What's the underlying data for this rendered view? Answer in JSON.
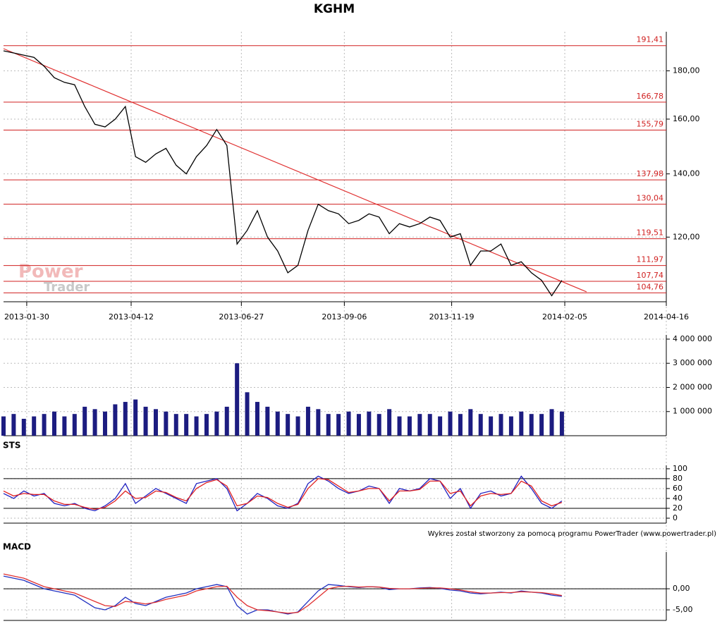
{
  "chart_data": [
    {
      "type": "line",
      "title": "KGHM",
      "log": true,
      "grid": true,
      "x": [
        "2013-01-14",
        "2013-01-21",
        "2013-01-28",
        "2013-02-04",
        "2013-02-11",
        "2013-02-18",
        "2013-02-25",
        "2013-03-04",
        "2013-03-11",
        "2013-03-18",
        "2013-03-25",
        "2013-04-01",
        "2013-04-08",
        "2013-04-15",
        "2013-04-22",
        "2013-04-29",
        "2013-05-06",
        "2013-05-13",
        "2013-05-20",
        "2013-05-27",
        "2013-06-03",
        "2013-06-10",
        "2013-06-17",
        "2013-06-24",
        "2013-07-01",
        "2013-07-08",
        "2013-07-15",
        "2013-07-22",
        "2013-07-29",
        "2013-08-05",
        "2013-08-12",
        "2013-08-19",
        "2013-08-26",
        "2013-09-02",
        "2013-09-09",
        "2013-09-16",
        "2013-09-23",
        "2013-09-30",
        "2013-10-07",
        "2013-10-14",
        "2013-10-21",
        "2013-10-28",
        "2013-11-04",
        "2013-11-11",
        "2013-11-18",
        "2013-11-25",
        "2013-12-02",
        "2013-12-09",
        "2013-12-16",
        "2013-12-23",
        "2013-12-30",
        "2014-01-06",
        "2014-01-13",
        "2014-01-20",
        "2014-01-27",
        "2014-02-03"
      ],
      "series": [
        {
          "color": "#000000",
          "values": [
            189,
            188,
            187,
            186,
            182,
            177,
            175,
            174,
            165,
            158,
            157,
            160,
            165,
            146,
            144,
            147,
            149,
            143,
            140,
            146,
            150,
            156,
            150,
            118,
            122,
            128,
            120,
            116,
            110,
            112,
            122,
            130,
            128,
            127,
            124,
            125,
            127,
            126,
            121,
            124,
            123,
            124,
            126,
            125,
            120,
            121,
            112,
            116,
            116,
            118,
            112,
            113,
            110,
            108,
            104,
            108
          ]
        }
      ],
      "xlim": [
        "2013-01-14",
        "2014-04-16"
      ],
      "xticks": [
        "2013-01-30",
        "2013-04-12",
        "2013-06-27",
        "2013-09-06",
        "2013-11-19",
        "2014-02-05",
        "2014-04-16"
      ],
      "ylim": [
        102.5,
        198
      ],
      "yticks": [
        {
          "value": 120,
          "label": "120,00"
        },
        {
          "value": 140,
          "label": "140,00"
        },
        {
          "value": 160,
          "label": "160,00"
        },
        {
          "value": 180,
          "label": "180,00"
        }
      ],
      "level_color": "#d02020",
      "levels": [
        {
          "value": 191.41,
          "label": "191,41"
        },
        {
          "value": 166.78,
          "label": "166,78"
        },
        {
          "value": 155.79,
          "label": "155,79"
        },
        {
          "value": 137.98,
          "label": "137,98"
        },
        {
          "value": 130.04,
          "label": "130,04"
        },
        {
          "value": 119.51,
          "label": "119,51"
        },
        {
          "value": 111.97,
          "label": "111,97"
        },
        {
          "value": 107.74,
          "label": "107,74"
        },
        {
          "value": 104.76,
          "label": "104,76"
        }
      ],
      "trendline": {
        "color": "#e03030",
        "x": [
          "2013-01-14",
          "2014-02-20"
        ],
        "values": [
          190,
          105
        ]
      }
    },
    {
      "type": "bar",
      "grid": true,
      "x": [
        "2013-01-14",
        "2013-01-21",
        "2013-01-28",
        "2013-02-04",
        "2013-02-11",
        "2013-02-18",
        "2013-02-25",
        "2013-03-04",
        "2013-03-11",
        "2013-03-18",
        "2013-03-25",
        "2013-04-01",
        "2013-04-08",
        "2013-04-15",
        "2013-04-22",
        "2013-04-29",
        "2013-05-06",
        "2013-05-13",
        "2013-05-20",
        "2013-05-27",
        "2013-06-03",
        "2013-06-10",
        "2013-06-17",
        "2013-06-24",
        "2013-07-01",
        "2013-07-08",
        "2013-07-15",
        "2013-07-22",
        "2013-07-29",
        "2013-08-05",
        "2013-08-12",
        "2013-08-19",
        "2013-08-26",
        "2013-09-02",
        "2013-09-09",
        "2013-09-16",
        "2013-09-23",
        "2013-09-30",
        "2013-10-07",
        "2013-10-14",
        "2013-10-21",
        "2013-10-28",
        "2013-11-04",
        "2013-11-11",
        "2013-11-18",
        "2013-11-25",
        "2013-12-02",
        "2013-12-09",
        "2013-12-16",
        "2013-12-23",
        "2013-12-30",
        "2014-01-06",
        "2014-01-13",
        "2014-01-20",
        "2014-01-27",
        "2014-02-03"
      ],
      "series": [
        {
          "color": "#1c1c80",
          "values": [
            800000,
            900000,
            700000,
            800000,
            900000,
            1000000,
            800000,
            900000,
            1200000,
            1100000,
            1000000,
            1300000,
            1400000,
            1500000,
            1200000,
            1100000,
            1000000,
            900000,
            900000,
            800000,
            900000,
            1000000,
            1200000,
            3000000,
            1800000,
            1400000,
            1200000,
            1000000,
            900000,
            800000,
            1200000,
            1100000,
            900000,
            900000,
            1000000,
            900000,
            1000000,
            900000,
            1100000,
            800000,
            800000,
            900000,
            900000,
            800000,
            1000000,
            900000,
            1100000,
            900000,
            800000,
            900000,
            800000,
            1000000,
            900000,
            900000,
            1100000,
            1000000
          ]
        }
      ],
      "xlim": [
        "2013-01-14",
        "2014-04-16"
      ],
      "ylim": [
        0,
        4175000
      ],
      "yticks": [
        {
          "value": 1000000,
          "label": "1 000 000"
        },
        {
          "value": 2000000,
          "label": "2 000 000"
        },
        {
          "value": 3000000,
          "label": "3 000 000"
        },
        {
          "value": 4000000,
          "label": "4 000 000"
        }
      ]
    },
    {
      "type": "line",
      "title": "STS",
      "grid": true,
      "x": [
        "2013-01-14",
        "2013-01-21",
        "2013-01-28",
        "2013-02-04",
        "2013-02-11",
        "2013-02-18",
        "2013-02-25",
        "2013-03-04",
        "2013-03-11",
        "2013-03-18",
        "2013-03-25",
        "2013-04-01",
        "2013-04-08",
        "2013-04-15",
        "2013-04-22",
        "2013-04-29",
        "2013-05-06",
        "2013-05-13",
        "2013-05-20",
        "2013-05-27",
        "2013-06-03",
        "2013-06-10",
        "2013-06-17",
        "2013-06-24",
        "2013-07-01",
        "2013-07-08",
        "2013-07-15",
        "2013-07-22",
        "2013-07-29",
        "2013-08-05",
        "2013-08-12",
        "2013-08-19",
        "2013-08-26",
        "2013-09-02",
        "2013-09-09",
        "2013-09-16",
        "2013-09-23",
        "2013-09-30",
        "2013-10-07",
        "2013-10-14",
        "2013-10-21",
        "2013-10-28",
        "2013-11-04",
        "2013-11-11",
        "2013-11-18",
        "2013-11-25",
        "2013-12-02",
        "2013-12-09",
        "2013-12-16",
        "2013-12-23",
        "2013-12-30",
        "2014-01-06",
        "2014-01-13",
        "2014-01-20",
        "2014-01-27",
        "2014-02-03"
      ],
      "series": [
        {
          "color": "#2020c0",
          "values": [
            50,
            40,
            55,
            45,
            50,
            30,
            25,
            30,
            20,
            15,
            25,
            40,
            70,
            30,
            45,
            60,
            50,
            40,
            30,
            70,
            75,
            80,
            60,
            15,
            30,
            50,
            40,
            25,
            20,
            30,
            70,
            85,
            75,
            60,
            50,
            55,
            65,
            60,
            30,
            60,
            55,
            60,
            80,
            75,
            40,
            60,
            20,
            50,
            55,
            45,
            50,
            85,
            60,
            30,
            20,
            35
          ]
        },
        {
          "color": "#e02020",
          "values": [
            55,
            45,
            50,
            48,
            48,
            35,
            28,
            28,
            22,
            18,
            22,
            35,
            55,
            40,
            42,
            55,
            52,
            42,
            35,
            60,
            72,
            78,
            65,
            25,
            30,
            45,
            42,
            30,
            22,
            28,
            60,
            80,
            78,
            65,
            52,
            55,
            60,
            60,
            35,
            55,
            55,
            58,
            75,
            75,
            50,
            55,
            25,
            45,
            50,
            48,
            50,
            75,
            65,
            35,
            25,
            32
          ]
        }
      ],
      "xlim": [
        "2013-01-14",
        "2014-04-16"
      ],
      "ylim": [
        -10,
        107
      ],
      "yticks": [
        0,
        20,
        40,
        60,
        80,
        100
      ],
      "level_color": "#000000",
      "levels": [
        20,
        80
      ]
    },
    {
      "type": "line",
      "title": "MACD",
      "grid": true,
      "x": [
        "2013-01-14",
        "2013-01-21",
        "2013-01-28",
        "2013-02-04",
        "2013-02-11",
        "2013-02-18",
        "2013-02-25",
        "2013-03-04",
        "2013-03-11",
        "2013-03-18",
        "2013-03-25",
        "2013-04-01",
        "2013-04-08",
        "2013-04-15",
        "2013-04-22",
        "2013-04-29",
        "2013-05-06",
        "2013-05-13",
        "2013-05-20",
        "2013-05-27",
        "2013-06-03",
        "2013-06-10",
        "2013-06-17",
        "2013-06-24",
        "2013-07-01",
        "2013-07-08",
        "2013-07-15",
        "2013-07-22",
        "2013-07-29",
        "2013-08-05",
        "2013-08-12",
        "2013-08-19",
        "2013-08-26",
        "2013-09-02",
        "2013-09-09",
        "2013-09-16",
        "2013-09-23",
        "2013-09-30",
        "2013-10-07",
        "2013-10-14",
        "2013-10-21",
        "2013-10-28",
        "2013-11-04",
        "2013-11-11",
        "2013-11-18",
        "2013-11-25",
        "2013-12-02",
        "2013-12-09",
        "2013-12-16",
        "2013-12-23",
        "2013-12-30",
        "2014-01-06",
        "2014-01-13",
        "2014-01-20",
        "2014-01-27",
        "2014-02-03"
      ],
      "series": [
        {
          "color": "#2030c0",
          "values": [
            3,
            2.5,
            2,
            1,
            0,
            -0.5,
            -1,
            -1.5,
            -3,
            -4.5,
            -5,
            -4,
            -2,
            -3.5,
            -4,
            -3,
            -2,
            -1.5,
            -1,
            0,
            0.5,
            1,
            0.5,
            -4,
            -6,
            -5,
            -5,
            -5.5,
            -6,
            -5.5,
            -3,
            -0.5,
            1,
            0.8,
            0.5,
            0.3,
            0.5,
            0.4,
            -0.2,
            0,
            0,
            0.2,
            0.3,
            0.1,
            -0.3,
            -0.5,
            -1,
            -1.2,
            -1,
            -0.8,
            -1,
            -0.5,
            -0.8,
            -1,
            -1.5,
            -1.8
          ]
        },
        {
          "color": "#e03030",
          "values": [
            3.5,
            3,
            2.5,
            1.5,
            0.5,
            0,
            -0.5,
            -1,
            -2,
            -3,
            -4,
            -4.2,
            -3,
            -3.2,
            -3.6,
            -3.2,
            -2.5,
            -2,
            -1.5,
            -0.5,
            0,
            0.5,
            0.6,
            -2,
            -4,
            -5,
            -5.2,
            -5.5,
            -5.8,
            -5.6,
            -4,
            -2,
            0,
            0.5,
            0.6,
            0.4,
            0.5,
            0.4,
            0.1,
            0,
            0,
            0.1,
            0.2,
            0.2,
            0,
            -0.3,
            -0.7,
            -1,
            -1,
            -0.9,
            -0.9,
            -0.7,
            -0.8,
            -0.9,
            -1.2,
            -1.6
          ]
        }
      ],
      "xlim": [
        "2013-01-14",
        "2014-04-16"
      ],
      "ylim": [
        -7.5,
        8.7
      ],
      "yticks": [
        {
          "value": -5,
          "label": "-5,00"
        },
        {
          "value": 0,
          "label": "0,00"
        }
      ],
      "levels": [
        0
      ],
      "level_color": "#000000"
    }
  ],
  "watermark": [
    "Power",
    "Trader"
  ],
  "footer": "Wykres został stworzony za pomocą programu PowerTrader (www.powertrader.pl)"
}
